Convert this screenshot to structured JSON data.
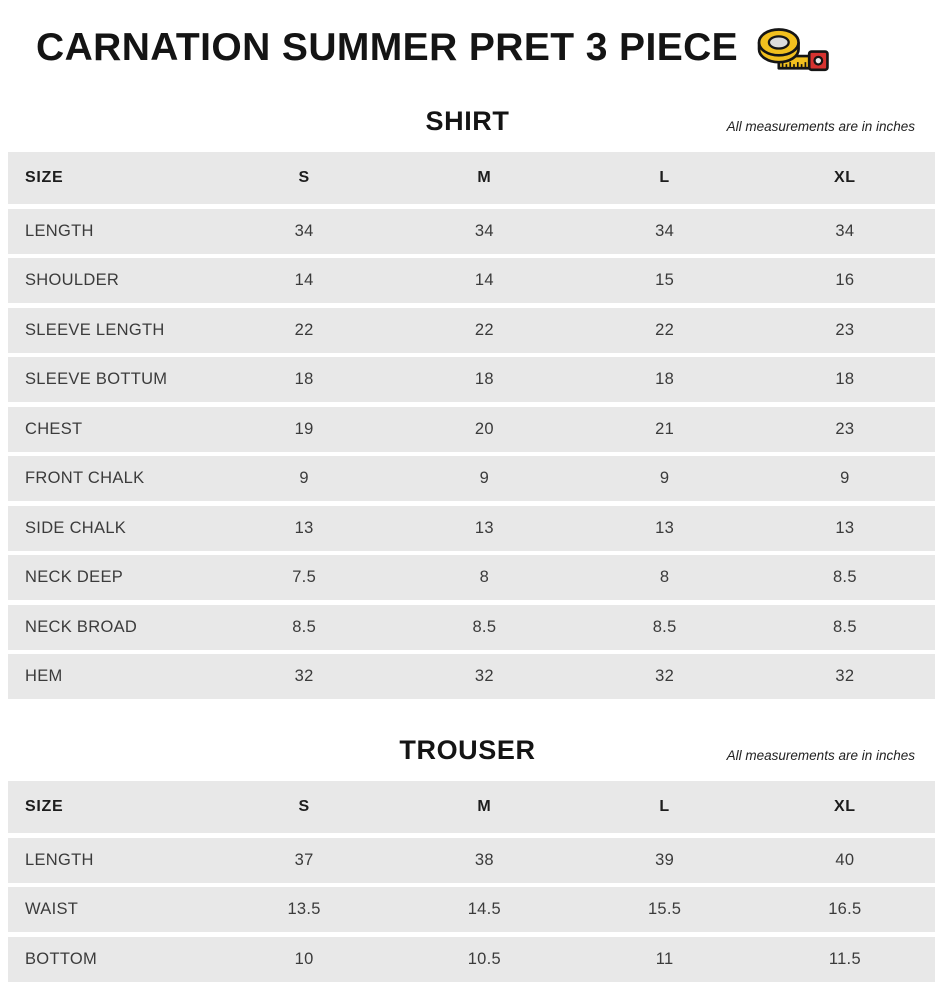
{
  "title": {
    "text": "CARNATION SUMMER PRET 3 PIECE",
    "icon": "tape-measure-icon"
  },
  "colors": {
    "row_bg": "#e8e8e8",
    "header_text": "#1d1d1d",
    "cell_text": "#3b3b3b",
    "title_text": "#141414",
    "tape_yellow": "#f2c01e",
    "tape_red": "#d63330",
    "tape_inner": "#dcdcdc",
    "tape_outline": "#151515"
  },
  "sections": [
    {
      "title": "SHIRT",
      "note": "All measurements are in inches",
      "table": {
        "headers": [
          "SIZE",
          "S",
          "M",
          "L",
          "XL"
        ],
        "rows": [
          [
            "LENGTH",
            "34",
            "34",
            "34",
            "34"
          ],
          [
            "SHOULDER",
            "14",
            "14",
            "15",
            "16"
          ],
          [
            "SLEEVE LENGTH",
            "22",
            "22",
            "22",
            "23"
          ],
          [
            "SLEEVE BOTTUM",
            "18",
            "18",
            "18",
            "18"
          ],
          [
            "CHEST",
            "19",
            "20",
            "21",
            "23"
          ],
          [
            "FRONT CHALK",
            "9",
            "9",
            "9",
            "9"
          ],
          [
            "SIDE CHALK",
            "13",
            "13",
            "13",
            "13"
          ],
          [
            "NECK DEEP",
            "7.5",
            "8",
            "8",
            "8.5"
          ],
          [
            "NECK BROAD",
            "8.5",
            "8.5",
            "8.5",
            "8.5"
          ],
          [
            "HEM",
            "32",
            "32",
            "32",
            "32"
          ]
        ]
      }
    },
    {
      "title": "TROUSER",
      "note": "All measurements are in inches",
      "table": {
        "headers": [
          "SIZE",
          "S",
          "M",
          "L",
          "XL"
        ],
        "rows": [
          [
            "LENGTH",
            "37",
            "38",
            "39",
            "40"
          ],
          [
            "WAIST",
            "13.5",
            "14.5",
            "15.5",
            "16.5"
          ],
          [
            "BOTTOM",
            "10",
            "10.5",
            "11",
            "11.5"
          ]
        ]
      }
    }
  ]
}
